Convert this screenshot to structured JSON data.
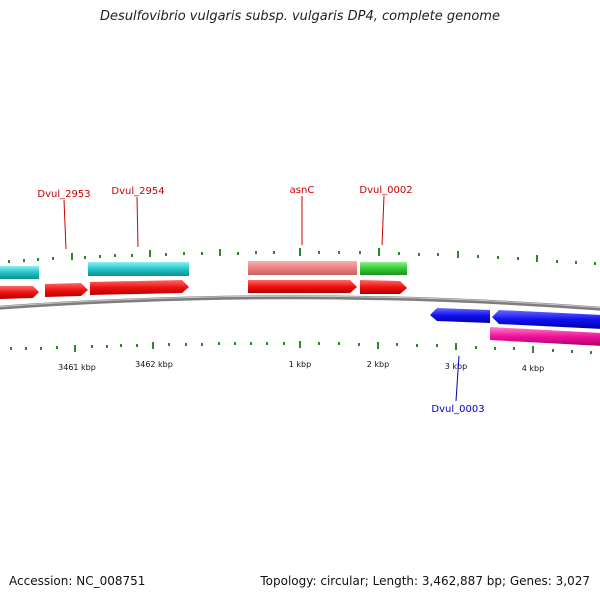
{
  "title": "Desulfovibrio vulgaris subsp. vulgaris DP4, complete genome",
  "footer": {
    "accession": "Accession: NC_008751",
    "summary": "Topology: circular; Length: 3,462,887 bp; Genes: 3,027"
  },
  "colors": {
    "backbone": "#7d7d7d",
    "ticks": "#2a8a2a",
    "label_forward": "#cc0000",
    "label_reverse": "#0000bb"
  },
  "tick_labels": [
    "3461 kbp",
    "3462 kbp",
    "1 kbp",
    "2 kbp",
    "3 kbp",
    "4 kbp"
  ],
  "gene_labels": [
    {
      "name": "Dvul_2953",
      "strand": "forward"
    },
    {
      "name": "Dvul_2954",
      "strand": "forward"
    },
    {
      "name": "asnC",
      "strand": "forward"
    },
    {
      "name": "Dvul_0002",
      "strand": "forward"
    },
    {
      "name": "Dvul_0003",
      "strand": "reverse"
    }
  ],
  "features": [
    {
      "label_ref": "",
      "track": "forward-cds",
      "color": "#ee1111"
    },
    {
      "label_ref": "Dvul_2953",
      "track": "forward-cds",
      "color": "#ee1111"
    },
    {
      "label_ref": "Dvul_2954",
      "track": "forward-cds",
      "color": "#ee1111"
    },
    {
      "label_ref": "asnC",
      "track": "forward-cds",
      "color": "#ee1111"
    },
    {
      "label_ref": "Dvul_0002",
      "track": "forward-cds",
      "color": "#ee1111"
    },
    {
      "label_ref": "",
      "track": "forward-product",
      "color": "#22c4c8"
    },
    {
      "label_ref": "Dvul_2954",
      "track": "forward-product",
      "color": "#22c4c8"
    },
    {
      "label_ref": "asnC",
      "track": "forward-product",
      "color": "#ee8080"
    },
    {
      "label_ref": "Dvul_0002",
      "track": "forward-product",
      "color": "#33cc33"
    },
    {
      "label_ref": "Dvul_0003",
      "track": "reverse-cds",
      "color": "#1111ee"
    },
    {
      "label_ref": "",
      "track": "reverse-cds",
      "color": "#1111ee"
    },
    {
      "label_ref": "",
      "track": "reverse-product",
      "color": "#ee1199"
    }
  ]
}
